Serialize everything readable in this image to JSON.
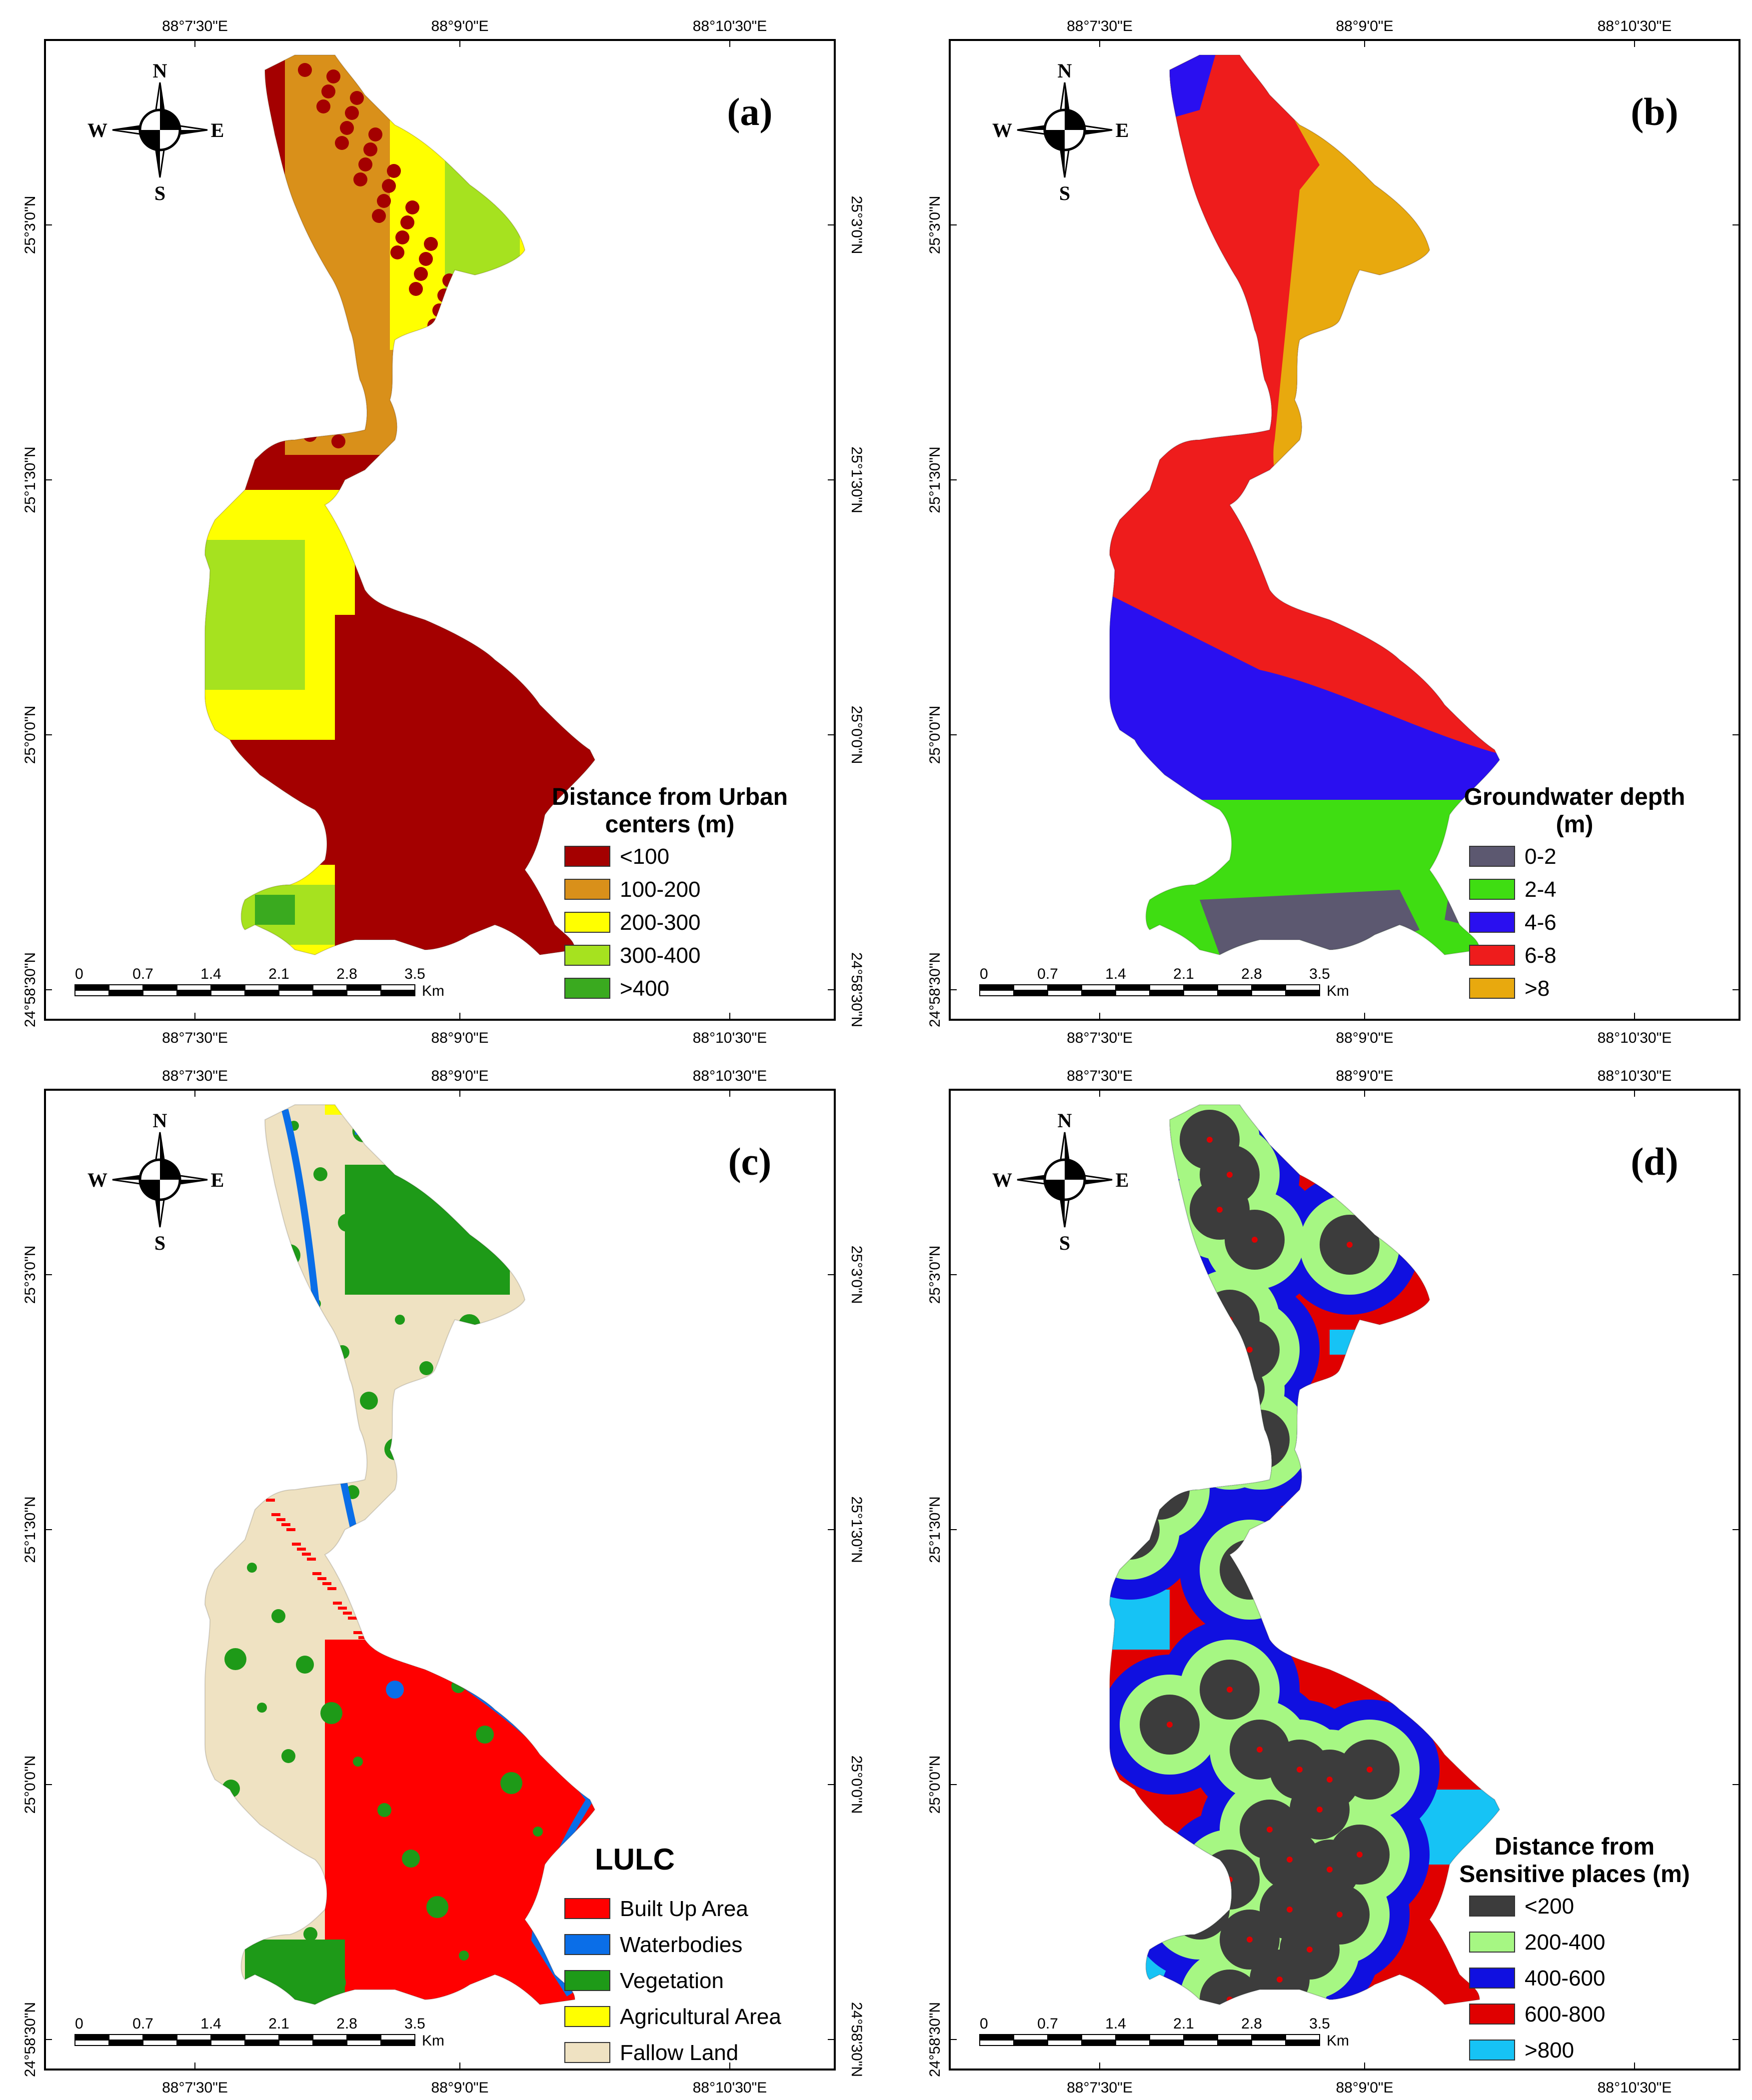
{
  "panels": [
    {
      "id": "a",
      "label": "(a)",
      "legend_title": [
        "Distance from Urban",
        "centers (m)"
      ],
      "legend": [
        {
          "label": "<100",
          "color": "#a40000"
        },
        {
          "label": "100-200",
          "color": "#d9901a"
        },
        {
          "label": "200-300",
          "color": "#ffff00"
        },
        {
          "label": "300-400",
          "color": "#a6e21f"
        },
        {
          "label": ">400",
          "color": "#3aaa1f"
        }
      ]
    },
    {
      "id": "b",
      "label": "(b)",
      "legend_title": [
        "Groundwater depth",
        "(m)"
      ],
      "legend": [
        {
          "label": "0-2",
          "color": "#5c5870"
        },
        {
          "label": "2-4",
          "color": "#3fdd12"
        },
        {
          "label": "4-6",
          "color": "#2a0ff0"
        },
        {
          "label": "6-8",
          "color": "#ee1c1c"
        },
        {
          "label": ">8",
          "color": "#e8a90e"
        }
      ]
    },
    {
      "id": "c",
      "label": "(c)",
      "legend_title": [
        "LULC"
      ],
      "legend": [
        {
          "label": "Built Up Area",
          "color": "#ff0000"
        },
        {
          "label": "Waterbodies",
          "color": "#0a6ee8"
        },
        {
          "label": "Vegetation",
          "color": "#1e9a18"
        },
        {
          "label": "Agricultural Area",
          "color": "#ffff00"
        },
        {
          "label": "Fallow Land",
          "color": "#efe2c2"
        }
      ]
    },
    {
      "id": "d",
      "label": "(d)",
      "legend_title": [
        "Distance from",
        "Sensitive places (m)"
      ],
      "legend": [
        {
          "label": "<200",
          "color": "#3c3c3c"
        },
        {
          "label": "200-400",
          "color": "#a6f783"
        },
        {
          "label": "400-600",
          "color": "#1010e0"
        },
        {
          "label": "600-800",
          "color": "#e00000"
        },
        {
          "label": ">800",
          "color": "#16c3f5"
        }
      ]
    }
  ],
  "longitude_labels": [
    "88°7'30\"E",
    "88°9'0\"E",
    "88°10'30\"E"
  ],
  "latitude_labels": [
    "25°3'0\"N",
    "25°1'30\"N",
    "25°0'0\"N",
    "24°58'30\"N"
  ],
  "scale_bar": {
    "ticks": [
      "0",
      "0.7",
      "1.4",
      "2.1",
      "2.8",
      "3.5"
    ],
    "unit": "Km"
  },
  "compass": {
    "n": "N",
    "s": "S",
    "e": "E",
    "w": "W"
  }
}
